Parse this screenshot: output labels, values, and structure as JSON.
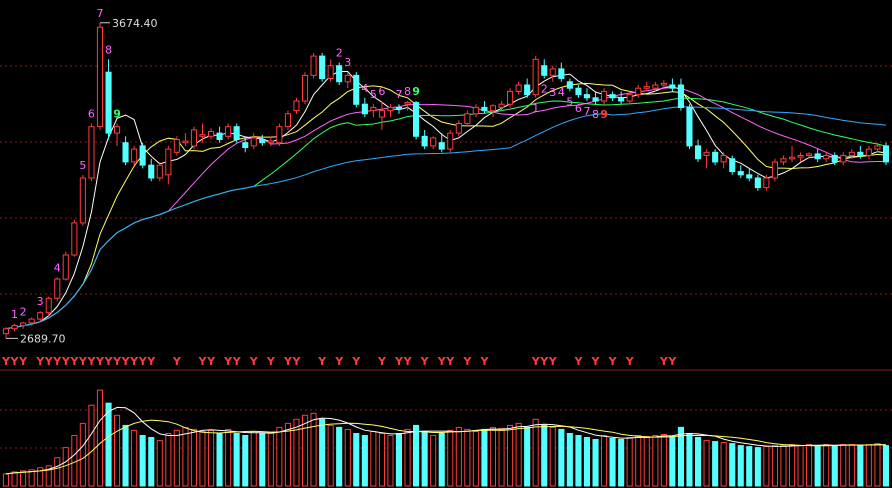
{
  "chart_data": {
    "type": "candlestick",
    "price_high_label": "3674.40",
    "price_low_label": "2689.70",
    "ylim": [
      2660,
      3720
    ],
    "colors": {
      "up": "#ff3b3b",
      "down": "#54ffff",
      "ma5": "#ffffff",
      "ma10": "#ffff66",
      "ma20": "#ff66ff",
      "ma30": "#33ff66",
      "ma60": "#33aaff",
      "grid": "#8b1a1a",
      "counter_up": "#ff66ff",
      "counter_down": "#ff66ff",
      "counter_nine_top": "#33ff66",
      "counter_nine_bottom": "#ff3b3b",
      "signal": "#ff3b3b"
    },
    "candles": [
      [
        2705,
        2725,
        2690,
        2720
      ],
      [
        2720,
        2735,
        2712,
        2730
      ],
      [
        2730,
        2742,
        2720,
        2738
      ],
      [
        2738,
        2755,
        2730,
        2750
      ],
      [
        2750,
        2775,
        2740,
        2770
      ],
      [
        2770,
        2820,
        2760,
        2815
      ],
      [
        2815,
        2880,
        2805,
        2875
      ],
      [
        2875,
        2960,
        2870,
        2950
      ],
      [
        2950,
        3060,
        2945,
        3050
      ],
      [
        3050,
        3200,
        3040,
        3190
      ],
      [
        3190,
        3360,
        3180,
        3350
      ],
      [
        3350,
        3674,
        3340,
        3660
      ],
      [
        3520,
        3560,
        3310,
        3330
      ],
      [
        3330,
        3360,
        3290,
        3350
      ],
      [
        3300,
        3320,
        3230,
        3240
      ],
      [
        3240,
        3290,
        3230,
        3280
      ],
      [
        3290,
        3300,
        3220,
        3230
      ],
      [
        3230,
        3250,
        3180,
        3190
      ],
      [
        3190,
        3240,
        3180,
        3230
      ],
      [
        3200,
        3290,
        3170,
        3280
      ],
      [
        3270,
        3320,
        3260,
        3310
      ],
      [
        3300,
        3330,
        3290,
        3305
      ],
      [
        3290,
        3350,
        3280,
        3340
      ],
      [
        3320,
        3360,
        3300,
        3325
      ],
      [
        3320,
        3345,
        3310,
        3335
      ],
      [
        3330,
        3350,
        3300,
        3310
      ],
      [
        3320,
        3360,
        3310,
        3350
      ],
      [
        3350,
        3360,
        3300,
        3310
      ],
      [
        3300,
        3320,
        3270,
        3285
      ],
      [
        3290,
        3330,
        3280,
        3315
      ],
      [
        3310,
        3325,
        3290,
        3300
      ],
      [
        3300,
        3320,
        3290,
        3305
      ],
      [
        3300,
        3360,
        3290,
        3350
      ],
      [
        3350,
        3400,
        3340,
        3390
      ],
      [
        3400,
        3440,
        3390,
        3430
      ],
      [
        3430,
        3520,
        3420,
        3510
      ],
      [
        3510,
        3580,
        3500,
        3570
      ],
      [
        3570,
        3580,
        3490,
        3500
      ],
      [
        3500,
        3560,
        3490,
        3540
      ],
      [
        3540,
        3550,
        3480,
        3490
      ],
      [
        3490,
        3520,
        3470,
        3510
      ],
      [
        3510,
        3520,
        3410,
        3420
      ],
      [
        3420,
        3440,
        3380,
        3390
      ],
      [
        3400,
        3420,
        3380,
        3410
      ],
      [
        3380,
        3430,
        3340,
        3400
      ],
      [
        3400,
        3420,
        3380,
        3410
      ],
      [
        3410,
        3420,
        3390,
        3405
      ],
      [
        3420,
        3430,
        3400,
        3425
      ],
      [
        3425,
        3430,
        3310,
        3320
      ],
      [
        3320,
        3340,
        3280,
        3290
      ],
      [
        3290,
        3320,
        3280,
        3315
      ],
      [
        3300,
        3330,
        3270,
        3280
      ],
      [
        3280,
        3340,
        3270,
        3330
      ],
      [
        3330,
        3370,
        3320,
        3360
      ],
      [
        3360,
        3400,
        3350,
        3390
      ],
      [
        3390,
        3420,
        3380,
        3410
      ],
      [
        3410,
        3430,
        3390,
        3400
      ],
      [
        3400,
        3420,
        3380,
        3415
      ],
      [
        3410,
        3430,
        3400,
        3420
      ],
      [
        3420,
        3470,
        3410,
        3460
      ],
      [
        3460,
        3490,
        3450,
        3480
      ],
      [
        3480,
        3500,
        3440,
        3450
      ],
      [
        3450,
        3570,
        3440,
        3560
      ],
      [
        3540,
        3560,
        3500,
        3510
      ],
      [
        3510,
        3540,
        3490,
        3530
      ],
      [
        3530,
        3550,
        3490,
        3500
      ],
      [
        3490,
        3500,
        3460,
        3470
      ],
      [
        3470,
        3480,
        3440,
        3450
      ],
      [
        3450,
        3470,
        3430,
        3440
      ],
      [
        3440,
        3460,
        3420,
        3430
      ],
      [
        3430,
        3470,
        3420,
        3460
      ],
      [
        3450,
        3460,
        3430,
        3440
      ],
      [
        3440,
        3460,
        3420,
        3430
      ],
      [
        3430,
        3460,
        3420,
        3450
      ],
      [
        3450,
        3480,
        3440,
        3470
      ],
      [
        3470,
        3490,
        3460,
        3475
      ],
      [
        3470,
        3490,
        3460,
        3480
      ],
      [
        3480,
        3495,
        3470,
        3485
      ],
      [
        3480,
        3500,
        3460,
        3470
      ],
      [
        3480,
        3500,
        3400,
        3410
      ],
      [
        3410,
        3420,
        3280,
        3290
      ],
      [
        3290,
        3310,
        3240,
        3250
      ],
      [
        3260,
        3280,
        3220,
        3270
      ],
      [
        3270,
        3280,
        3230,
        3240
      ],
      [
        3240,
        3270,
        3220,
        3260
      ],
      [
        3250,
        3260,
        3200,
        3210
      ],
      [
        3210,
        3230,
        3190,
        3200
      ],
      [
        3200,
        3220,
        3180,
        3190
      ],
      [
        3190,
        3200,
        3150,
        3160
      ],
      [
        3160,
        3200,
        3150,
        3190
      ],
      [
        3190,
        3250,
        3180,
        3240
      ],
      [
        3240,
        3260,
        3230,
        3250
      ],
      [
        3250,
        3290,
        3240,
        3255
      ],
      [
        3255,
        3270,
        3240,
        3260
      ],
      [
        3260,
        3270,
        3250,
        3265
      ],
      [
        3265,
        3280,
        3240,
        3250
      ],
      [
        3250,
        3270,
        3240,
        3260
      ],
      [
        3260,
        3270,
        3230,
        3240
      ],
      [
        3240,
        3270,
        3230,
        3260
      ],
      [
        3260,
        3280,
        3250,
        3270
      ],
      [
        3270,
        3290,
        3250,
        3260
      ],
      [
        3260,
        3290,
        3250,
        3280
      ],
      [
        3280,
        3300,
        3270,
        3290
      ],
      [
        3290,
        3300,
        3230,
        3240
      ]
    ],
    "ma_periods": [
      5,
      10,
      20,
      30,
      60
    ],
    "counters": [
      {
        "i": 1,
        "t": "1"
      },
      {
        "i": 2,
        "t": "2"
      },
      {
        "i": 4,
        "t": "3"
      },
      {
        "i": 6,
        "t": "4"
      },
      {
        "i": 9,
        "t": "5"
      },
      {
        "i": 10,
        "t": "6"
      },
      {
        "i": 11,
        "t": "7"
      },
      {
        "i": 12,
        "t": "8"
      },
      {
        "i": 13,
        "t": "9"
      },
      {
        "i": 39,
        "t": "2"
      },
      {
        "i": 40,
        "t": "3"
      },
      {
        "i": 42,
        "t": "4"
      },
      {
        "i": 43,
        "t": "5"
      },
      {
        "i": 44,
        "t": "6"
      },
      {
        "i": 46,
        "t": "7"
      },
      {
        "i": 47,
        "t": "8"
      },
      {
        "i": 48,
        "t": "9"
      },
      {
        "i": 62,
        "t": "1"
      },
      {
        "i": 63,
        "t": "2"
      },
      {
        "i": 64,
        "t": "3"
      },
      {
        "i": 65,
        "t": "4"
      },
      {
        "i": 66,
        "t": "5"
      },
      {
        "i": 67,
        "t": "6"
      },
      {
        "i": 68,
        "t": "7"
      },
      {
        "i": 69,
        "t": "8"
      },
      {
        "i": 70,
        "t": "9"
      }
    ],
    "signal_label": "Y",
    "signals": [
      0,
      1,
      2,
      4,
      5,
      6,
      7,
      8,
      9,
      10,
      11,
      12,
      13,
      14,
      15,
      16,
      17,
      20,
      23,
      24,
      26,
      27,
      29,
      31,
      33,
      34,
      37,
      39,
      41,
      44,
      46,
      47,
      49,
      51,
      52,
      54,
      56,
      62,
      63,
      64,
      67,
      69,
      71,
      73,
      77,
      78
    ],
    "volume": [
      12,
      14,
      15,
      16,
      18,
      20,
      28,
      38,
      50,
      62,
      80,
      95,
      82,
      70,
      60,
      55,
      50,
      48,
      45,
      52,
      55,
      58,
      56,
      54,
      55,
      52,
      56,
      52,
      50,
      54,
      52,
      53,
      58,
      62,
      66,
      70,
      72,
      66,
      60,
      58,
      56,
      52,
      50,
      54,
      52,
      50,
      52,
      56,
      60,
      54,
      50,
      52,
      55,
      58,
      56,
      54,
      56,
      58,
      57,
      60,
      62,
      58,
      66,
      60,
      58,
      56,
      52,
      50,
      48,
      46,
      50,
      47,
      46,
      48,
      50,
      49,
      50,
      51,
      49,
      58,
      52,
      48,
      45,
      44,
      43,
      42,
      40,
      39,
      38,
      39,
      40,
      40,
      41,
      40,
      41,
      40,
      41,
      40,
      41,
      41,
      40,
      41,
      42,
      40
    ],
    "ylim_volume": [
      0,
      100
    ]
  }
}
